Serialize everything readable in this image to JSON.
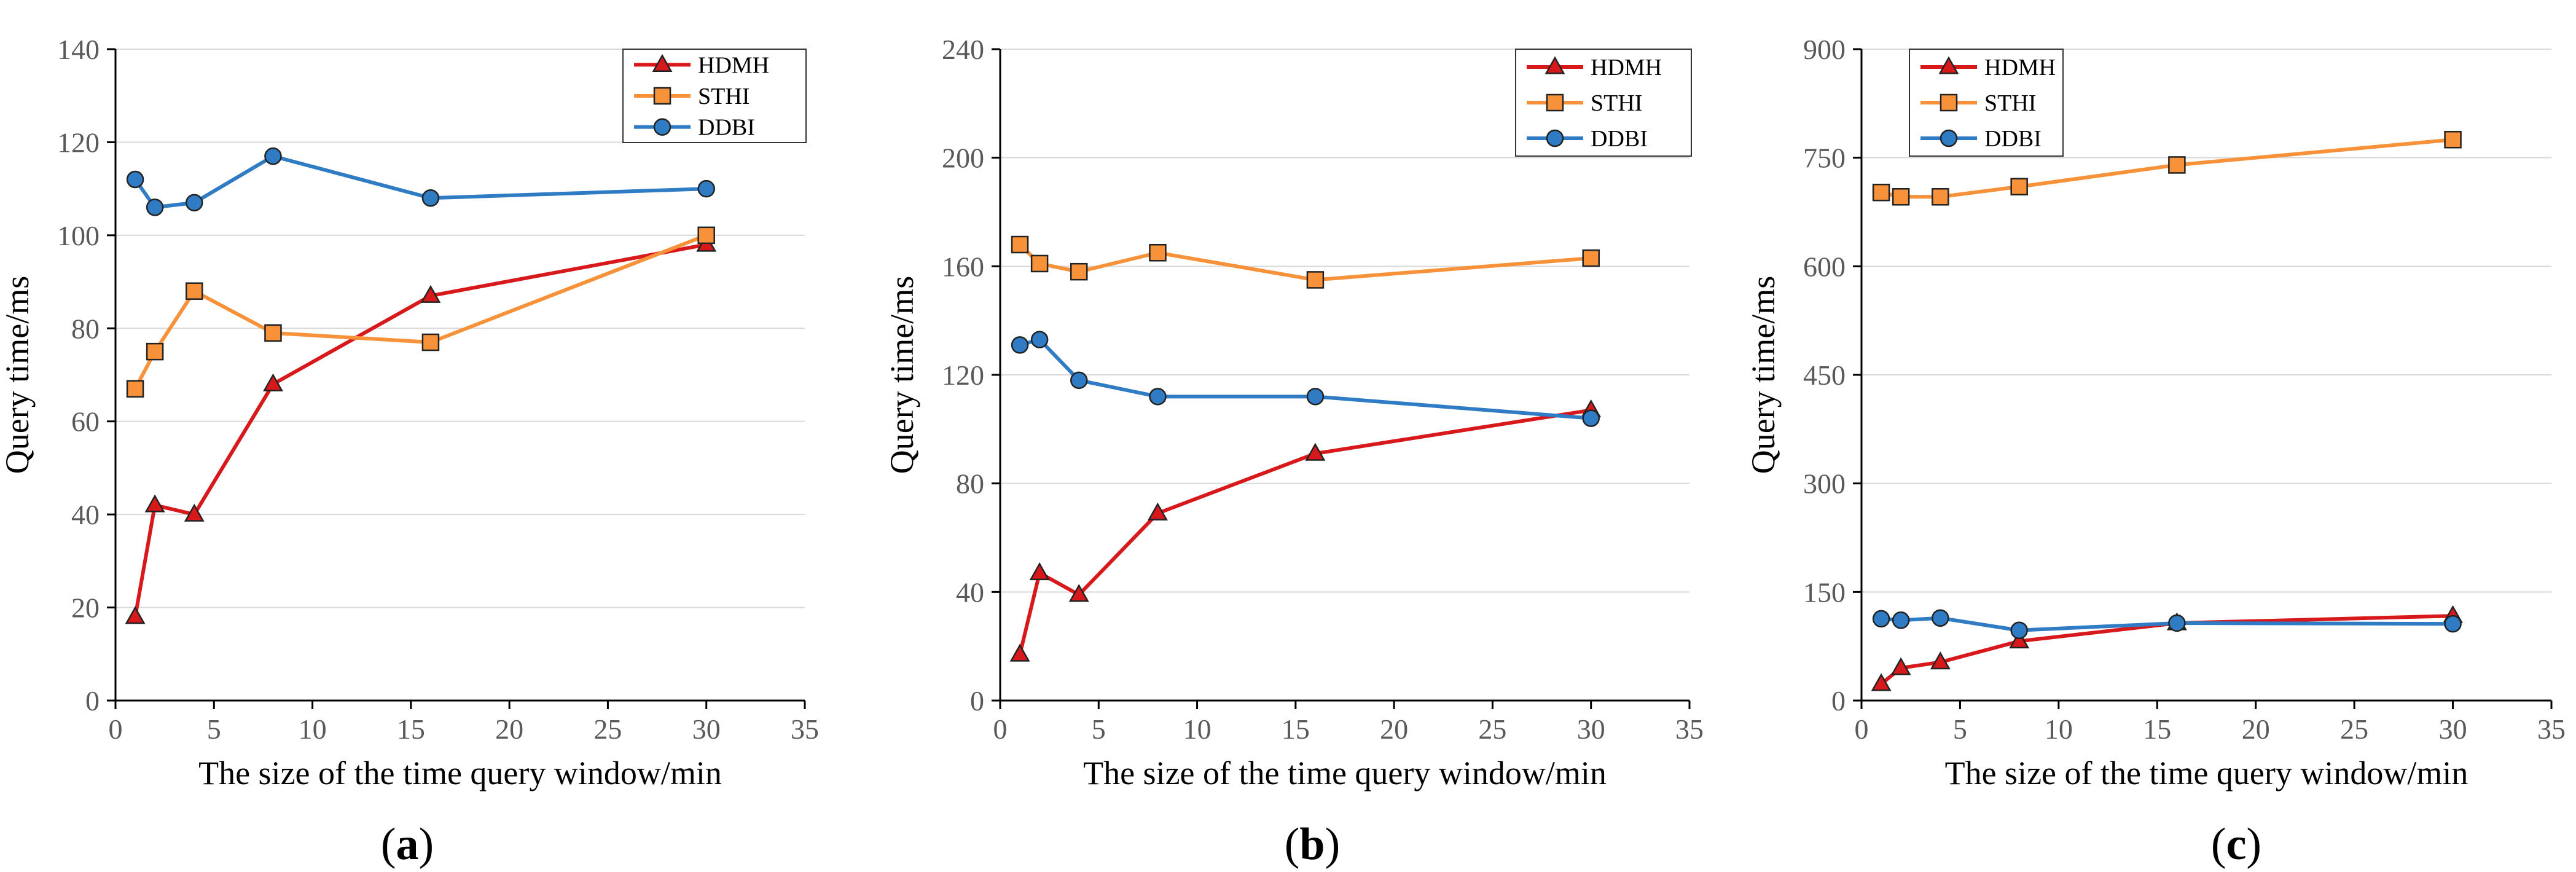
{
  "figure": {
    "panels": [
      "a",
      "b",
      "c"
    ]
  },
  "chart_data": [
    {
      "type": "line",
      "panel_label": "a",
      "xlabel": "The size of the time query window/min",
      "ylabel": "Query time/ms",
      "xlim": [
        0,
        35
      ],
      "ylim": [
        0,
        140
      ],
      "xticks": [
        0,
        5,
        10,
        15,
        20,
        25,
        30,
        35
      ],
      "yticks": [
        0,
        20,
        40,
        60,
        80,
        100,
        120,
        140
      ],
      "grid": "horizontal",
      "legend_position": "top-right",
      "series": [
        {
          "name": "HDMH",
          "color": "#d7191c",
          "marker": "triangle",
          "x": [
            1,
            2,
            4,
            8,
            16,
            30
          ],
          "y": [
            18,
            42,
            40,
            68,
            87,
            98
          ]
        },
        {
          "name": "STHI",
          "color": "#f7923a",
          "marker": "square",
          "x": [
            1,
            2,
            4,
            8,
            16,
            30
          ],
          "y": [
            67,
            75,
            88,
            79,
            77,
            100
          ]
        },
        {
          "name": "DDBI",
          "color": "#2f7bc4",
          "marker": "circle",
          "x": [
            1,
            2,
            4,
            8,
            16,
            30
          ],
          "y": [
            112,
            106,
            107,
            117,
            108,
            110
          ]
        }
      ]
    },
    {
      "type": "line",
      "panel_label": "b",
      "xlabel": "The size of the time query window/min",
      "ylabel": "Query time/ms",
      "xlim": [
        0,
        35
      ],
      "ylim": [
        0,
        240
      ],
      "xticks": [
        0,
        5,
        10,
        15,
        20,
        25,
        30,
        35
      ],
      "yticks": [
        0,
        40,
        80,
        120,
        160,
        200,
        240
      ],
      "grid": "horizontal",
      "legend_position": "top-right",
      "series": [
        {
          "name": "HDMH",
          "color": "#d7191c",
          "marker": "triangle",
          "x": [
            1,
            2,
            4,
            8,
            16,
            30
          ],
          "y": [
            17,
            47,
            39,
            69,
            91,
            107
          ]
        },
        {
          "name": "STHI",
          "color": "#f7923a",
          "marker": "square",
          "x": [
            1,
            2,
            4,
            8,
            16,
            30
          ],
          "y": [
            168,
            161,
            158,
            165,
            155,
            163
          ]
        },
        {
          "name": "DDBI",
          "color": "#2f7bc4",
          "marker": "circle",
          "x": [
            1,
            2,
            4,
            8,
            16,
            30
          ],
          "y": [
            131,
            133,
            118,
            112,
            112,
            104
          ]
        }
      ]
    },
    {
      "type": "line",
      "panel_label": "c",
      "xlabel": "The size of the time query window/min",
      "ylabel": "Query time/ms",
      "xlim": [
        0,
        35
      ],
      "ylim": [
        0,
        900
      ],
      "xticks": [
        0,
        5,
        10,
        15,
        20,
        25,
        30,
        35
      ],
      "yticks": [
        0,
        150,
        300,
        450,
        600,
        750,
        900
      ],
      "grid": "horizontal",
      "legend_position": "top-left",
      "series": [
        {
          "name": "HDMH",
          "color": "#d7191c",
          "marker": "triangle",
          "x": [
            1,
            2,
            4,
            8,
            16,
            30
          ],
          "y": [
            23,
            45,
            53,
            82,
            107,
            117
          ]
        },
        {
          "name": "STHI",
          "color": "#f7923a",
          "marker": "square",
          "x": [
            1,
            2,
            4,
            8,
            16,
            30
          ],
          "y": [
            702,
            696,
            696,
            710,
            740,
            775
          ]
        },
        {
          "name": "DDBI",
          "color": "#2f7bc4",
          "marker": "circle",
          "x": [
            1,
            2,
            4,
            8,
            16,
            30
          ],
          "y": [
            113,
            111,
            114,
            97,
            107,
            106
          ]
        }
      ]
    }
  ]
}
